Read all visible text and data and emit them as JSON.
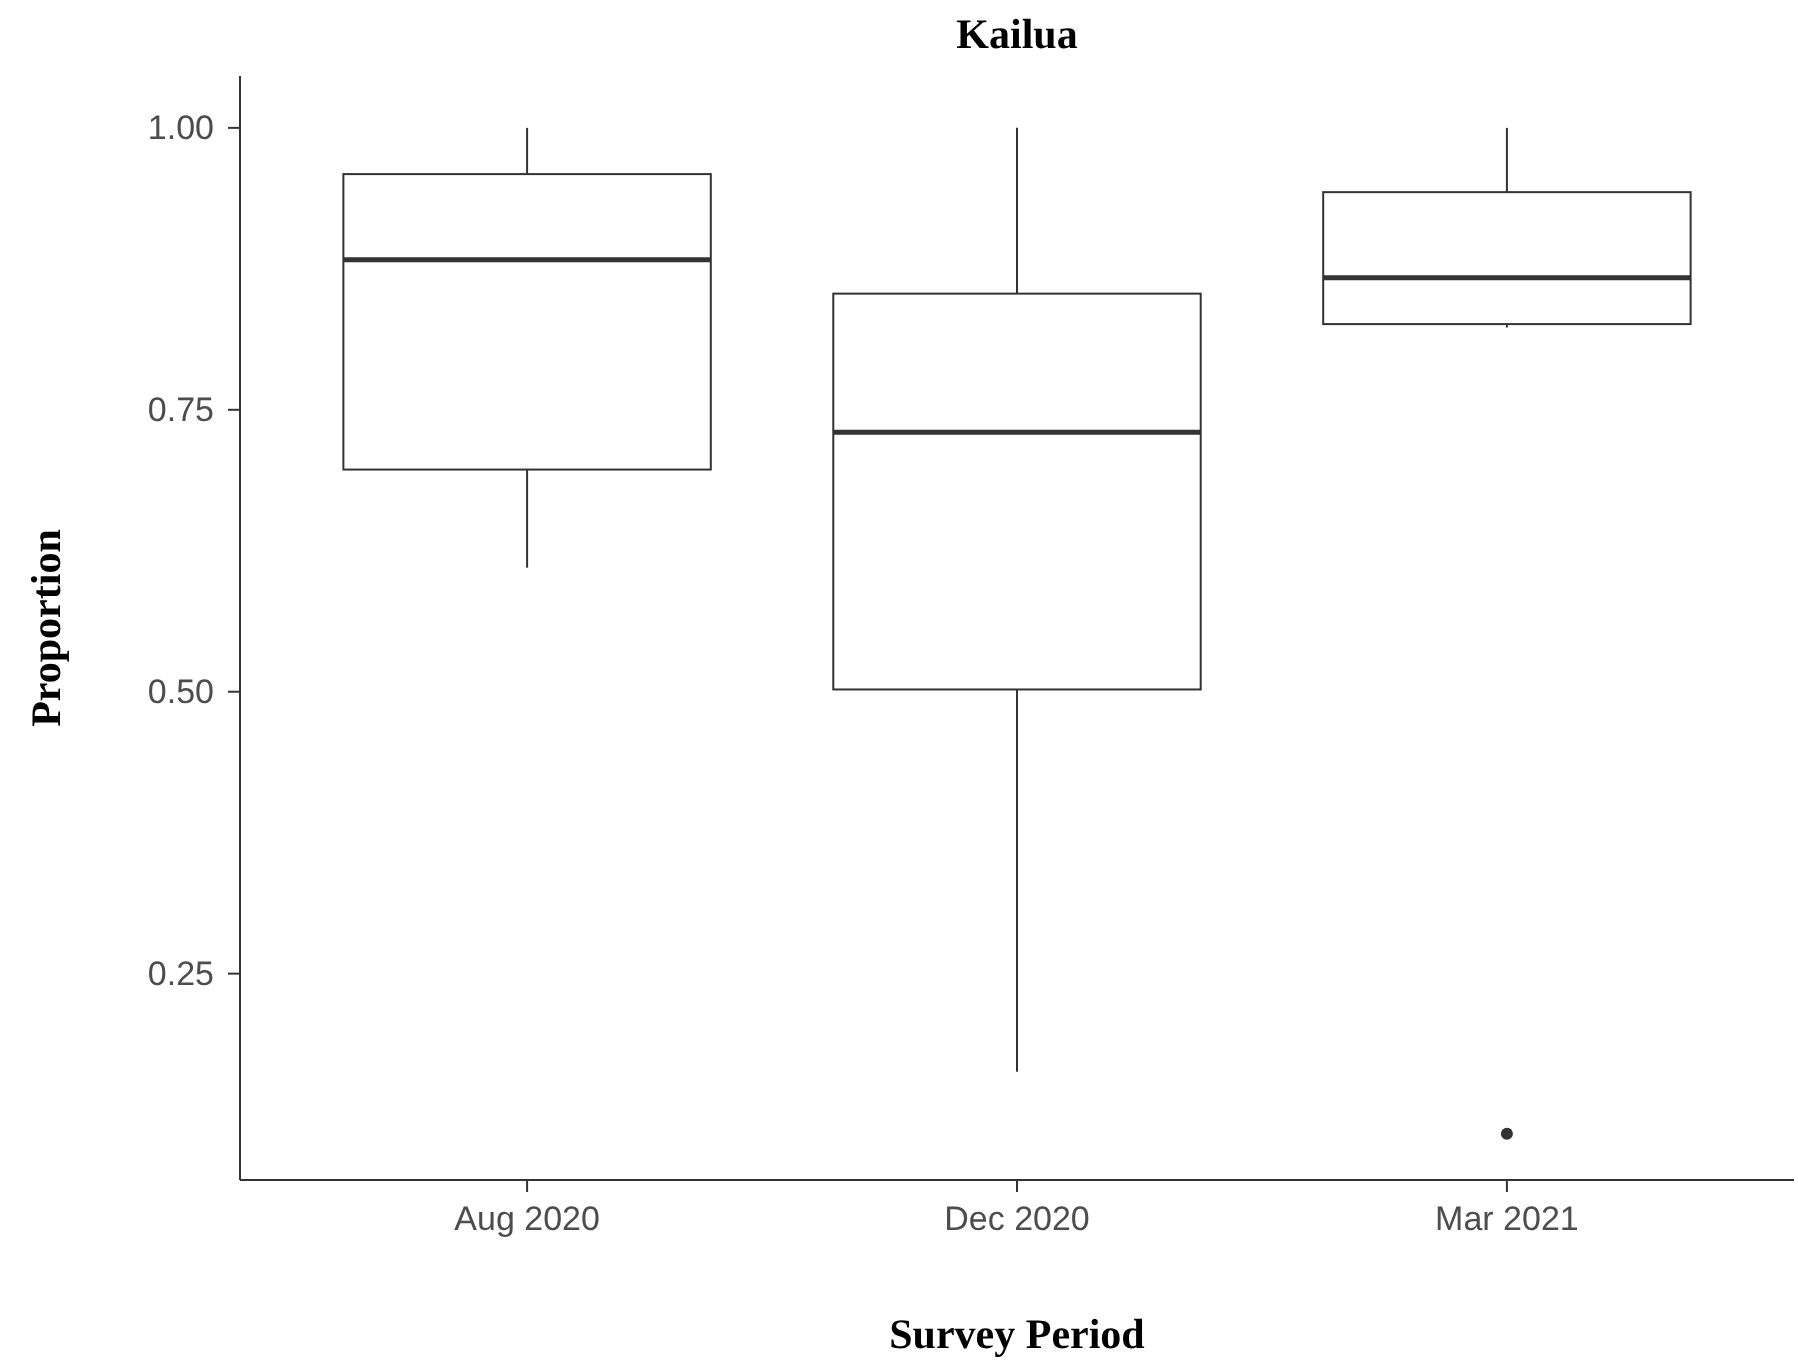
{
  "chart_data": {
    "type": "box",
    "title": "Kailua",
    "xlabel": "Survey Period",
    "ylabel": "Proportion",
    "categories": [
      "Aug 2020",
      "Dec 2020",
      "Mar 2021"
    ],
    "boxes": [
      {
        "low": 0.61,
        "q1": 0.697,
        "median": 0.883,
        "q3": 0.959,
        "high": 1.0
      },
      {
        "low": 0.163,
        "q1": 0.502,
        "median": 0.73,
        "q3": 0.853,
        "high": 1.0
      },
      {
        "low": 0.823,
        "q1": 0.826,
        "median": 0.867,
        "q3": 0.943,
        "high": 1.0,
        "outliers": [
          0.108
        ]
      }
    ],
    "ylim": [
      0.067,
      1.046
    ],
    "yticks": [
      {
        "value": 0.25,
        "label": "0.25"
      },
      {
        "value": 0.5,
        "label": "0.50"
      },
      {
        "value": 0.75,
        "label": "0.75"
      },
      {
        "value": 1,
        "label": "1.00"
      }
    ],
    "grid": false
  }
}
